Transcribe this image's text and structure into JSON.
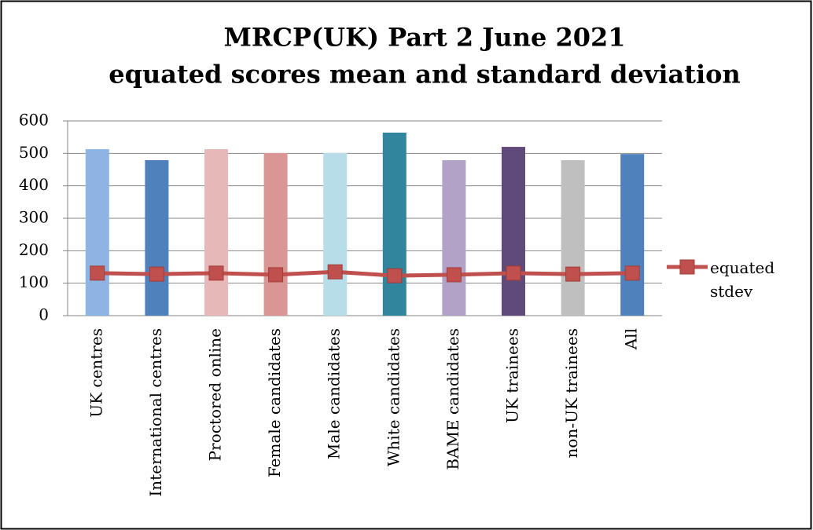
{
  "chart_data": {
    "type": "bar",
    "title": [
      "MRCP(UK) Part 2 June 2021",
      "equated scores mean and standard deviation"
    ],
    "categories": [
      "UK centres",
      "International centres",
      "Proctored online",
      "Female candidates",
      "Male candidates",
      "White candidates",
      "BAME candidates",
      "UK trainees",
      "non-UK trainees",
      "All"
    ],
    "series": [
      {
        "type": "bar",
        "colors": [
          "#8eb4e3",
          "#4f81bd",
          "#e6b9b8",
          "#d99694",
          "#b7dee8",
          "#31859c",
          "#b3a2c7",
          "#604a7b",
          "#bfbfbf",
          "#4f81bd"
        ],
        "values": [
          513,
          479,
          513,
          501,
          501,
          564,
          479,
          520,
          479,
          498
        ]
      },
      {
        "type": "line",
        "name": "equated stdev",
        "color": "#c0504d",
        "values": [
          131,
          128,
          131,
          126,
          135,
          123,
          126,
          131,
          128,
          131
        ]
      }
    ],
    "ylim": [
      0,
      600
    ],
    "yticks": [
      0,
      100,
      200,
      300,
      400,
      500,
      600
    ],
    "grid": true,
    "legend": "right"
  }
}
